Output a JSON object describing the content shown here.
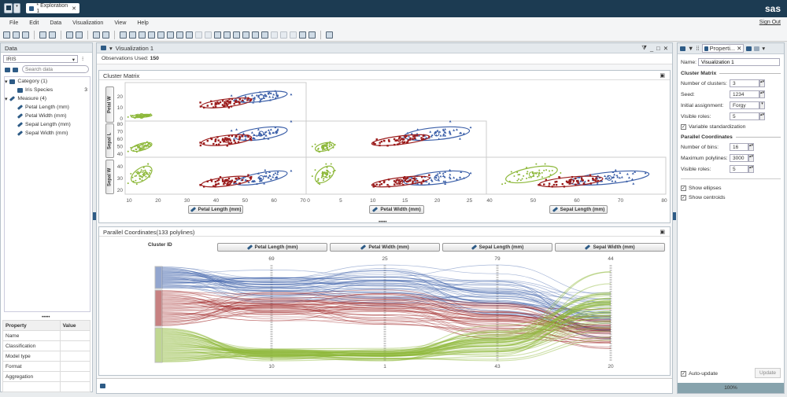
{
  "topbar": {
    "tab_label": "* Exploration 1",
    "logo": "sas"
  },
  "menu": [
    "File",
    "Edit",
    "Data",
    "Visualization",
    "View",
    "Help"
  ],
  "sign_out": "Sign Out",
  "toolbar_icons": [
    "new-exploration-icon",
    "open-icon",
    "save-icon",
    "undo-icon",
    "redo-icon",
    "page-icon",
    "duplicate-icon",
    "pointer-icon",
    "add-icon",
    "bar-chart-icon",
    "table-icon",
    "crosstab-icon",
    "histogram-icon",
    "line-chart-icon",
    "scatter-icon",
    "bubble-icon",
    "network-icon",
    "x-disabled-icon",
    "chart-disabled-icon",
    "box-plot-icon",
    "heatmap-icon",
    "geo-icon",
    "treemap-icon",
    "correlation-icon",
    "decision-tree-icon",
    "warning-icon",
    "forecast-icon",
    "matrix-icon",
    "cluster-icon",
    "parallel-coords-icon",
    "settings-icon"
  ],
  "data_panel": {
    "title": "Data",
    "source": "IRIS",
    "search_placeholder": "Search data",
    "tree": {
      "category": "Category (1)",
      "category_items": [
        {
          "label": "Iris Species",
          "count": "3"
        }
      ],
      "measure": "Measure (4)",
      "measure_items": [
        "Petal Length (mm)",
        "Petal Width (mm)",
        "Sepal Length (mm)",
        "Sepal Width (mm)"
      ]
    },
    "properties": {
      "headers": [
        "Property",
        "Value"
      ],
      "rows": [
        "Name",
        "Classification",
        "Model type",
        "Format",
        "Aggregation"
      ]
    }
  },
  "viz": {
    "title": "Visualization 1",
    "observations_label": "Observations Used:",
    "observations_value": "150",
    "cluster_matrix_title": "Cluster Matrix",
    "parallel_title": "Parallel Coordinates(133 polylines)",
    "cluster_id_label": "Cluster ID"
  },
  "chart_data": [
    {
      "type": "scatter",
      "title": "Cluster Matrix",
      "x_vars": [
        {
          "label": "Petal Length (mm)",
          "range": [
            10,
            70
          ],
          "ticks": [
            10,
            20,
            30,
            40,
            50,
            60,
            70
          ]
        },
        {
          "label": "Petal Width (mm)",
          "range": [
            0,
            28
          ],
          "ticks": [
            0,
            5,
            10,
            15,
            20,
            25
          ]
        },
        {
          "label": "Sepal Length (mm)",
          "range": [
            40,
            80
          ],
          "ticks": [
            40,
            50,
            60,
            70,
            80
          ]
        }
      ],
      "y_vars": [
        {
          "label": "Petal W",
          "range": [
            0,
            25
          ],
          "ticks": [
            0,
            10,
            20
          ]
        },
        {
          "label": "Sepal L",
          "range": [
            40,
            80
          ],
          "ticks": [
            40,
            50,
            60,
            70,
            80
          ]
        },
        {
          "label": "Sepal W",
          "range": [
            20,
            45
          ],
          "ticks": [
            20,
            30,
            40
          ]
        }
      ],
      "clusters": [
        {
          "id": 1,
          "color": "#3b5fa8",
          "means": {
            "petal_length": 57,
            "petal_width": 20.5,
            "sepal_length": 68,
            "sepal_width": 31
          },
          "sd": {
            "petal_length": 5,
            "petal_width": 2.7,
            "sepal_length": 5,
            "sepal_width": 2.8
          }
        },
        {
          "id": 2,
          "color": "#9b1c1c",
          "means": {
            "petal_length": 43,
            "petal_width": 14,
            "sepal_length": 58,
            "sepal_width": 27.5
          },
          "sd": {
            "petal_length": 5,
            "petal_width": 2.6,
            "sepal_length": 4.5,
            "sepal_width": 2.5
          }
        },
        {
          "id": 3,
          "color": "#8db83a",
          "means": {
            "petal_length": 14.6,
            "petal_width": 2.5,
            "sepal_length": 50,
            "sepal_width": 34
          },
          "sd": {
            "petal_length": 1.7,
            "petal_width": 1,
            "sepal_length": 3.5,
            "sepal_width": 3.8
          }
        }
      ],
      "grid": false
    },
    {
      "type": "parallel",
      "title": "Parallel Coordinates(133 polylines)",
      "polylines": 133,
      "axes": [
        {
          "label": "Petal Length (mm)",
          "max": 69,
          "min": 10
        },
        {
          "label": "Petal Width (mm)",
          "max": 25,
          "min": 1
        },
        {
          "label": "Sepal Length (mm)",
          "max": 79,
          "min": 43
        },
        {
          "label": "Sepal Width (mm)",
          "max": 44,
          "min": 20
        }
      ]
    }
  ],
  "properties_panel": {
    "tab_label": "Properti...",
    "name_label": "Name:",
    "name_value": "Visualization 1",
    "cluster_section": "Cluster Matrix",
    "num_clusters_label": "Number of clusters:",
    "num_clusters": "3",
    "seed_label": "Seed:",
    "seed": "1234",
    "initial_label": "Initial assignment:",
    "initial": "Forgy",
    "visible_roles_label": "Visible roles:",
    "visible_roles": "5",
    "var_std_label": "Variable standardization",
    "parallel_section": "Parallel Coordinates",
    "bins_label": "Number of bins:",
    "bins": "16",
    "max_poly_label": "Maximum polylines:",
    "max_poly": "3000",
    "pc_visible_label": "Visible roles:",
    "pc_visible": "5",
    "show_ellipses": "Show ellipses",
    "show_centroids": "Show centroids",
    "auto_update": "Auto-update",
    "update_btn": "Update",
    "progress_label": "100%",
    "progress": 1.0
  }
}
